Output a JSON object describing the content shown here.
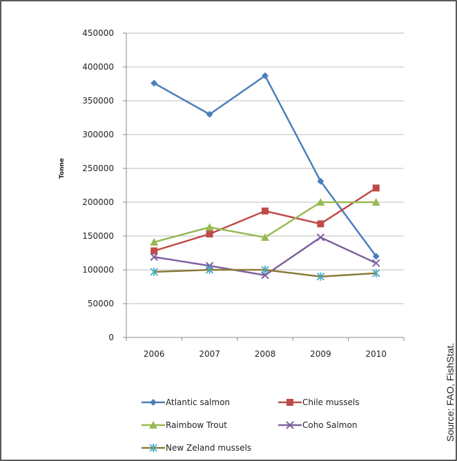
{
  "source_note": "Source: FAO, FishStat.",
  "chart_data": {
    "type": "line",
    "title": "",
    "xlabel": "",
    "ylabel": "Tonne",
    "ylim": [
      0,
      450000
    ],
    "yticks": [
      "0",
      "50000",
      "100000",
      "150000",
      "200000",
      "250000",
      "300000",
      "350000",
      "400000",
      "450000"
    ],
    "categories": [
      "2006",
      "2007",
      "2008",
      "2009",
      "2010"
    ],
    "grid": "horizontal",
    "legend_position": "bottom",
    "series": [
      {
        "name": "Atlantic salmon",
        "color": "#4a7ebb",
        "marker": "diamond",
        "values": [
          376000,
          330000,
          387000,
          231000,
          120000
        ]
      },
      {
        "name": "Chile mussels",
        "color": "#be4b48",
        "marker": "square",
        "values": [
          128000,
          153000,
          187000,
          168000,
          221000
        ]
      },
      {
        "name": "Raimbow Trout",
        "color": "#98b954",
        "marker": "triangle",
        "values": [
          141000,
          163000,
          148000,
          200000,
          200000
        ]
      },
      {
        "name": "Coho Salmon",
        "color": "#7d60a0",
        "marker": "x",
        "values": [
          119000,
          106000,
          92000,
          148000,
          110000
        ]
      },
      {
        "name": "New Zeland mussels",
        "color": "#8a7a3a",
        "marker": "star",
        "marker_color": "#46aac5",
        "values": [
          97000,
          100000,
          100000,
          90000,
          95000
        ]
      }
    ]
  }
}
